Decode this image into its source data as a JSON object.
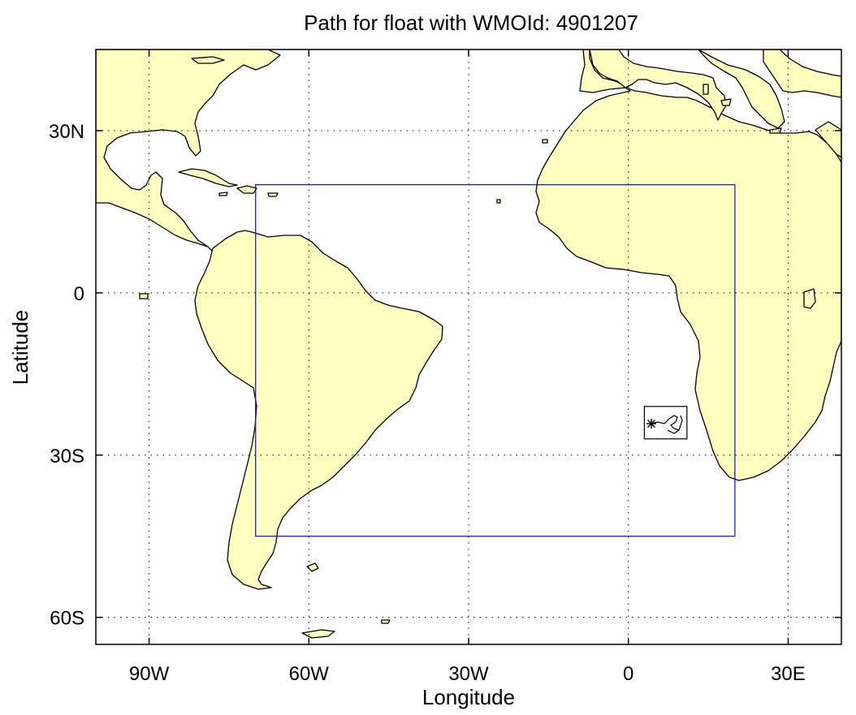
{
  "title": "Path for float with WMOId: 4901207",
  "xlabel": "Longitude",
  "ylabel": "Latitude",
  "lon_range": [
    -100,
    40
  ],
  "lat_range": [
    -65,
    45
  ],
  "x_ticks": [
    {
      "value": -90,
      "label": "90W"
    },
    {
      "value": -60,
      "label": "60W"
    },
    {
      "value": -30,
      "label": "30W"
    },
    {
      "value": 0,
      "label": "0"
    },
    {
      "value": 30,
      "label": "30E"
    }
  ],
  "y_ticks": [
    {
      "value": 30,
      "label": "30N"
    },
    {
      "value": 0,
      "label": "0"
    },
    {
      "value": -30,
      "label": "30S"
    },
    {
      "value": -60,
      "label": "60S"
    }
  ],
  "grid": true,
  "region_box": {
    "lon": [
      -70,
      20
    ],
    "lat": [
      -45,
      20
    ],
    "color": "#1a1acc"
  },
  "land_color": "#ffffc0",
  "float_marker": "asterisk",
  "float_path_box": {
    "lon": [
      3,
      11
    ],
    "lat": [
      -27,
      -21
    ]
  }
}
